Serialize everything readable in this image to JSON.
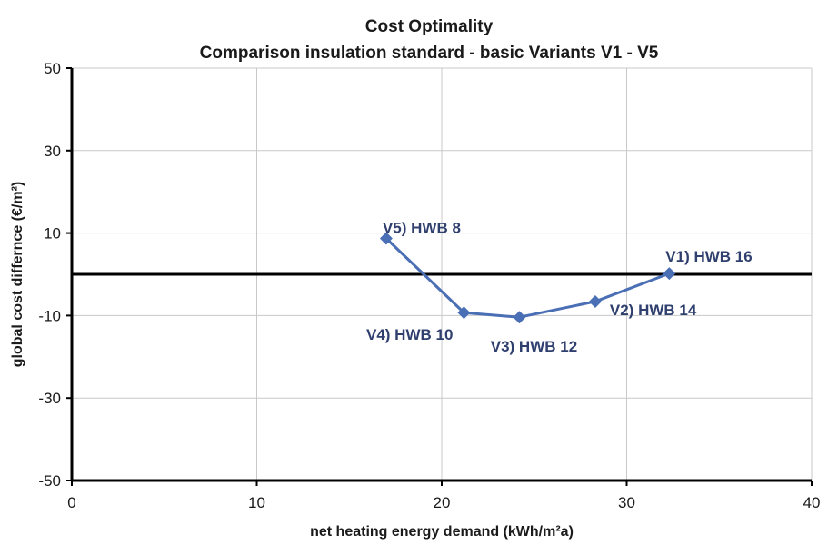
{
  "chart_data": {
    "type": "line",
    "title": "Cost Optimality",
    "subtitle": "Comparison insulation standard - basic Variants V1 - V5",
    "xlabel": "net heating energy demand (kWh/m²a)",
    "ylabel": "global cost differnce (€/m²)",
    "xlim": [
      0,
      40
    ],
    "ylim": [
      -50,
      50
    ],
    "x_ticks": [
      0,
      10,
      20,
      30,
      40
    ],
    "y_ticks": [
      -50,
      -30,
      -10,
      10,
      30,
      50
    ],
    "x_tick_labels": [
      "0",
      "10",
      "20",
      "30",
      "40"
    ],
    "y_tick_labels": [
      "-50",
      "-30",
      "-10",
      "10",
      "30",
      "50"
    ],
    "grid": true,
    "reference_line_y": 0,
    "series": [
      {
        "color": "#4a6fb5",
        "marker": "diamond",
        "points": [
          {
            "x": 17.0,
            "y": 8.7,
            "label": "V5) HWB 8"
          },
          {
            "x": 21.2,
            "y": -9.3,
            "label": "V4) HWB 10"
          },
          {
            "x": 24.2,
            "y": -10.4,
            "label": "V3) HWB 12"
          },
          {
            "x": 28.3,
            "y": -6.6,
            "label": "V2) HWB 14"
          },
          {
            "x": 32.3,
            "y": 0.2,
            "label": "V1) HWB 16"
          }
        ]
      }
    ]
  }
}
